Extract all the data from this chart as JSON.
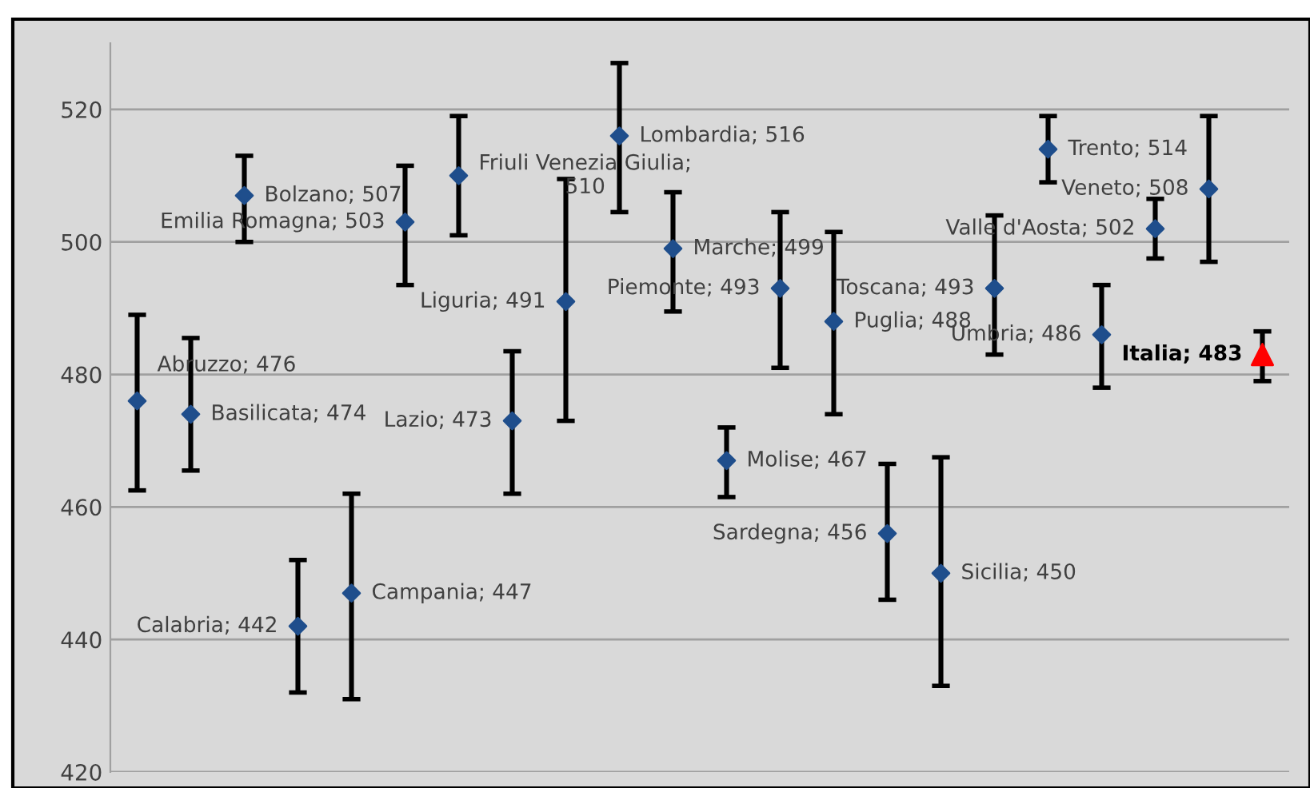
{
  "chart_data": {
    "type": "scatter",
    "categories": [
      null,
      null,
      null,
      null,
      null,
      null,
      null,
      null,
      null,
      null,
      null,
      null,
      null,
      null,
      null,
      null,
      null,
      null,
      null,
      null,
      null,
      null
    ],
    "series": [
      {
        "color": "#1f4e8c",
        "marker": "diamond",
        "values": [
          476,
          474,
          507,
          442,
          447,
          503,
          510,
          473,
          491,
          516,
          499,
          467,
          493,
          488,
          456,
          450,
          493,
          514,
          486,
          502,
          508,
          null
        ],
        "errors": [
          [
            462.5,
            489
          ],
          [
            465.5,
            485.5
          ],
          [
            500,
            513
          ],
          [
            432,
            452
          ],
          [
            431,
            462
          ],
          [
            493.5,
            511.5
          ],
          [
            501,
            519
          ],
          [
            462,
            483.5
          ],
          [
            473,
            509.5
          ],
          [
            504.5,
            527
          ],
          [
            489.5,
            507.5
          ],
          [
            461.5,
            472
          ],
          [
            481,
            504.5
          ],
          [
            474,
            501.5
          ],
          [
            446,
            466.5
          ],
          [
            433,
            467.5
          ],
          [
            483,
            504
          ],
          [
            509,
            519
          ],
          [
            478,
            493.5
          ],
          [
            497.5,
            506.5
          ],
          [
            497,
            519
          ],
          null
        ],
        "value_labels": [
          "Abruzzo; 476",
          "Basilicata; 474",
          "Bolzano; 507",
          "Calabria; 442",
          "Campania; 447",
          "Emilia Romagna; 503",
          "Friuli Venezia Giulia;\n510",
          "Lazio; 473",
          "Liguria; 491",
          "Lombardia; 516",
          "Marche; 499",
          "Molise; 467",
          "Piemonte; 493",
          "Puglia; 488",
          "Sardegna; 456",
          "Sicilia; 450",
          "Toscana; 493",
          "Trento; 514",
          "Umbria; 486",
          "Valle d'Aosta; 502",
          "Veneto; 508",
          null
        ]
      },
      {
        "color": "#ff0000",
        "marker": "triangle",
        "values": [
          null,
          null,
          null,
          null,
          null,
          null,
          null,
          null,
          null,
          null,
          null,
          null,
          null,
          null,
          null,
          null,
          null,
          null,
          null,
          null,
          null,
          483
        ],
        "errors": [
          null,
          null,
          null,
          null,
          null,
          null,
          null,
          null,
          null,
          null,
          null,
          null,
          null,
          null,
          null,
          null,
          null,
          null,
          null,
          null,
          null,
          [
            479,
            486.5
          ]
        ],
        "value_labels": [
          null,
          null,
          null,
          null,
          null,
          null,
          null,
          null,
          null,
          null,
          null,
          null,
          null,
          null,
          null,
          null,
          null,
          null,
          null,
          null,
          null,
          "Italia; 483"
        ]
      }
    ],
    "ylim": [
      420,
      530
    ],
    "yticks": [
      420,
      440,
      460,
      480,
      500,
      520
    ],
    "grid": "y",
    "tick_labels": "y"
  }
}
